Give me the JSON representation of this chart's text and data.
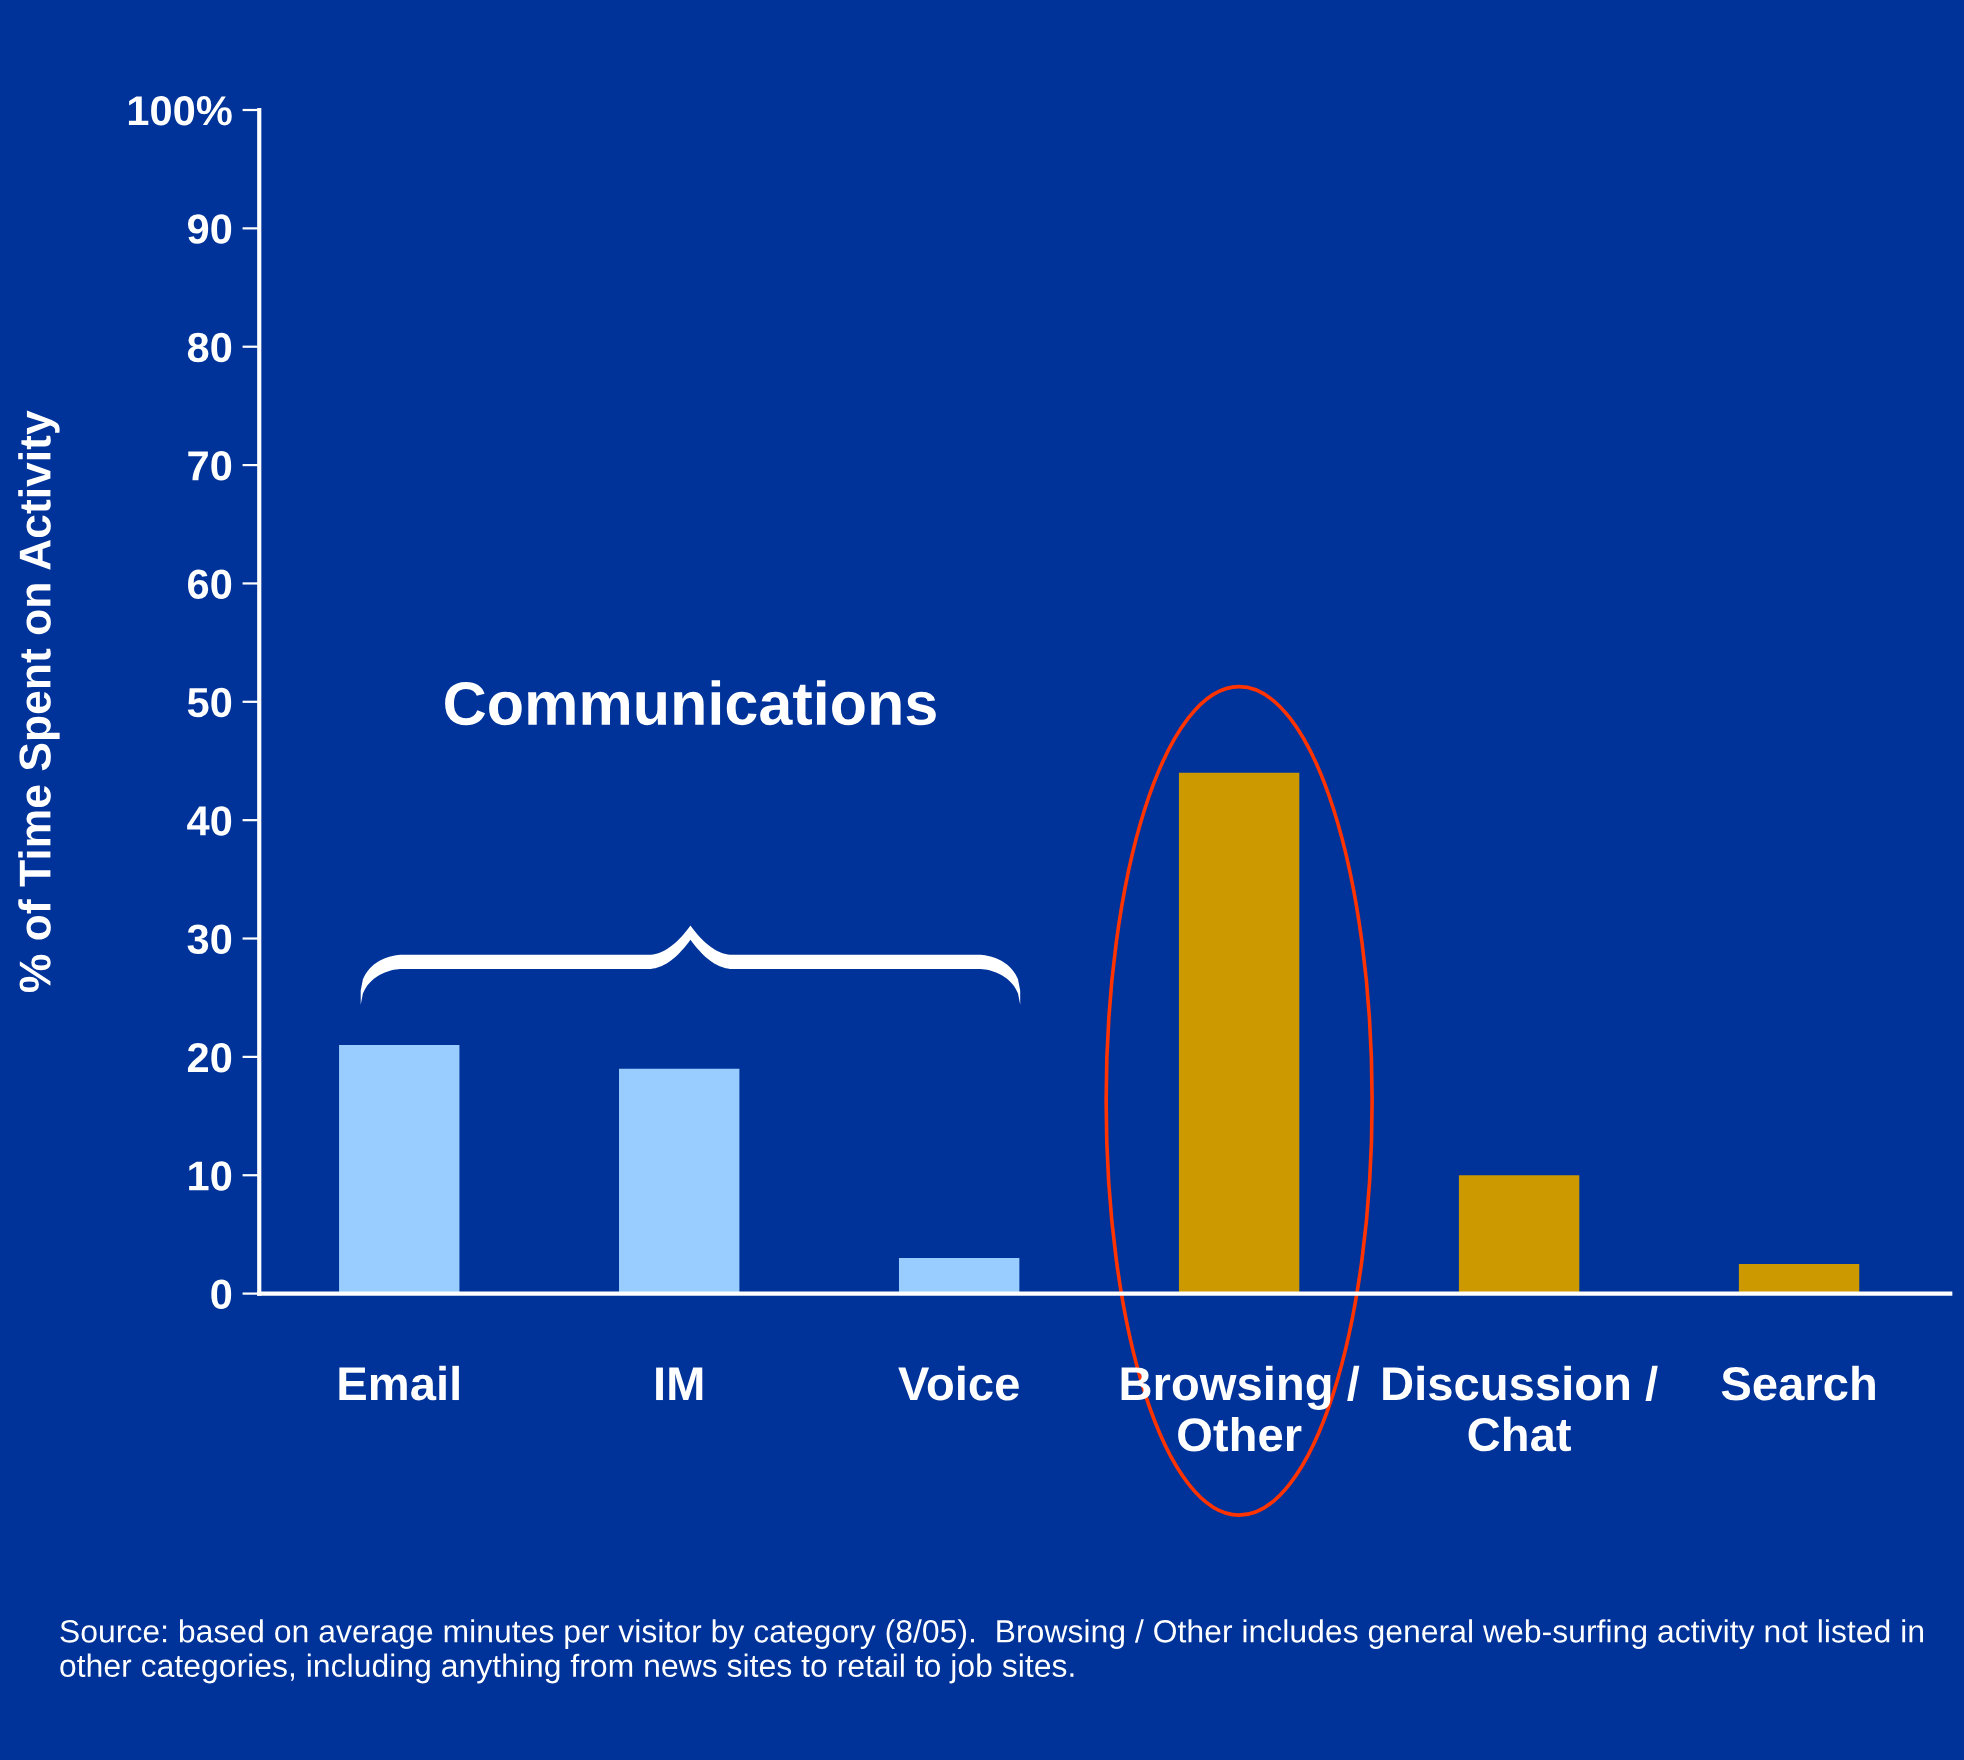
{
  "chart_data": {
    "type": "bar",
    "ylabel": "% of Time Spent on Activity",
    "categories": [
      "Email",
      "IM",
      "Voice",
      "Browsing /\nOther",
      "Discussion /\nChat",
      "Search"
    ],
    "values": [
      21,
      19,
      3,
      44,
      10,
      2.5
    ],
    "colors": [
      "#99ccff",
      "#99ccff",
      "#99ccff",
      "#cc9900",
      "#cc9900",
      "#cc9900"
    ],
    "ylim": [
      0,
      100
    ],
    "yticks": [
      0,
      10,
      20,
      30,
      40,
      50,
      60,
      70,
      80,
      90,
      {
        "value": 100,
        "label": "100%"
      }
    ],
    "grid": false,
    "annotations": [
      "Communications",
      "Source: based on average minutes per visitor by category (8/05).  Browsing / Other includes general web-surfing activity not listed in other categories, including anything from news sites to retail to job sites."
    ]
  }
}
